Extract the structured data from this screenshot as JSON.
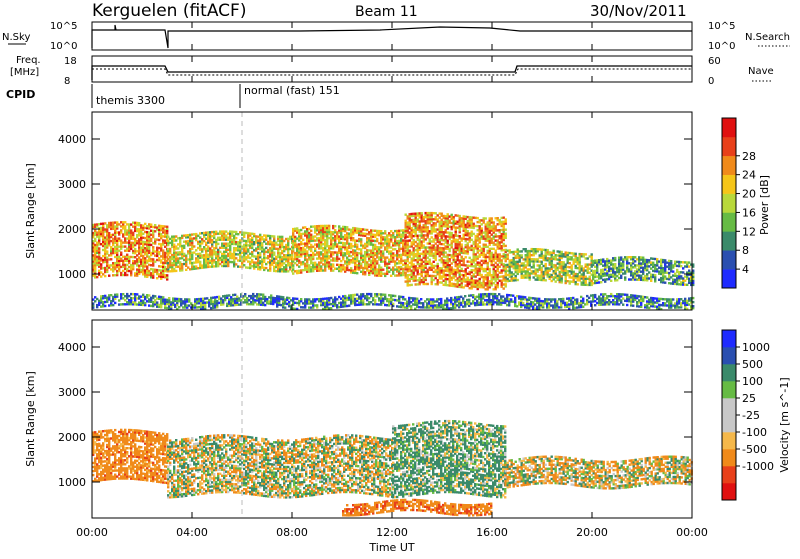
{
  "header": {
    "station": "Kerguelen (fitACF)",
    "beam": "Beam 11",
    "date": "30/Nov/2011"
  },
  "top_panel": {
    "left_label": "N.Sky",
    "left_ticks": [
      "10^5",
      "10^0"
    ],
    "right_label": "N.Search",
    "right_ticks": [
      "10^5",
      "10^0"
    ]
  },
  "freq_panel": {
    "left_label_1": "Freq.",
    "left_label_2": "[MHz]",
    "left_ticks": [
      "18",
      "8"
    ],
    "right_label": "Nave",
    "right_ticks": [
      "60",
      "0"
    ]
  },
  "cpid": {
    "label": "CPID",
    "modes": [
      "themis 3300",
      "normal (fast) 151"
    ]
  },
  "x_axis": {
    "label": "Time UT",
    "ticks": [
      "00:00",
      "04:00",
      "08:00",
      "12:00",
      "16:00",
      "20:00",
      "00:00"
    ]
  },
  "colors": {
    "power": [
      "#1f2bff",
      "#2a4fb0",
      "#3a8a6a",
      "#66bb44",
      "#b8d83a",
      "#f5c518",
      "#f08a1a",
      "#e8401a",
      "#e01010"
    ],
    "velocity": [
      "#e01010",
      "#e8401a",
      "#f08a1a",
      "#f5b84a",
      "#c8c8c8",
      "#c8c8c8",
      "#66bb44",
      "#3a8a6a",
      "#2a4fb0",
      "#1f2bff"
    ]
  },
  "chart_data": [
    {
      "type": "heatmap",
      "ylabel": "Slant Range [km]",
      "yticks": [
        "1000",
        "2000",
        "3000",
        "4000"
      ],
      "ylim": [
        200,
        4600
      ],
      "xlim": [
        0,
        24
      ],
      "colorbar_label": "Power [dB]",
      "colorbar_ticks": [
        "4",
        "8",
        "12",
        "16",
        "20",
        "24",
        "28"
      ],
      "echo_bands": [
        {
          "t0": 0.0,
          "t1": 3.0,
          "r0": 900,
          "r1": 2100,
          "level": 20
        },
        {
          "t0": 3.0,
          "t1": 8.0,
          "r0": 1100,
          "r1": 1900,
          "level": 16
        },
        {
          "t0": 8.0,
          "t1": 12.5,
          "r0": 1000,
          "r1": 2000,
          "level": 18
        },
        {
          "t0": 12.5,
          "t1": 16.5,
          "r0": 700,
          "r1": 2300,
          "level": 20
        },
        {
          "t0": 16.5,
          "t1": 20.0,
          "r0": 800,
          "r1": 1500,
          "level": 14
        },
        {
          "t0": 20.0,
          "t1": 24.0,
          "r0": 800,
          "r1": 1300,
          "level": 10
        },
        {
          "t0": 0.0,
          "t1": 24.0,
          "r0": 250,
          "r1": 500,
          "level": 8
        }
      ]
    },
    {
      "type": "heatmap",
      "ylabel": "Slant Range [km]",
      "yticks": [
        "1000",
        "2000",
        "3000",
        "4000"
      ],
      "ylim": [
        200,
        4600
      ],
      "xlim": [
        0,
        24
      ],
      "colorbar_label": "Velocity [m s^-1]",
      "colorbar_ticks": [
        "1000",
        "500",
        "100",
        "25",
        "-25",
        "-100",
        "-500",
        "-1000"
      ],
      "echo_bands": [
        {
          "t0": 0.0,
          "t1": 3.0,
          "r0": 1000,
          "r1": 2100,
          "level": -300
        },
        {
          "t0": 3.0,
          "t1": 12.0,
          "r0": 700,
          "r1": 2000,
          "level": 0
        },
        {
          "t0": 12.0,
          "t1": 16.5,
          "r0": 700,
          "r1": 2300,
          "level": 150
        },
        {
          "t0": 16.5,
          "t1": 24.0,
          "r0": 900,
          "r1": 1500,
          "level": -50
        },
        {
          "t0": 10.0,
          "t1": 16.0,
          "r0": 300,
          "r1": 550,
          "level": -400
        }
      ]
    }
  ]
}
